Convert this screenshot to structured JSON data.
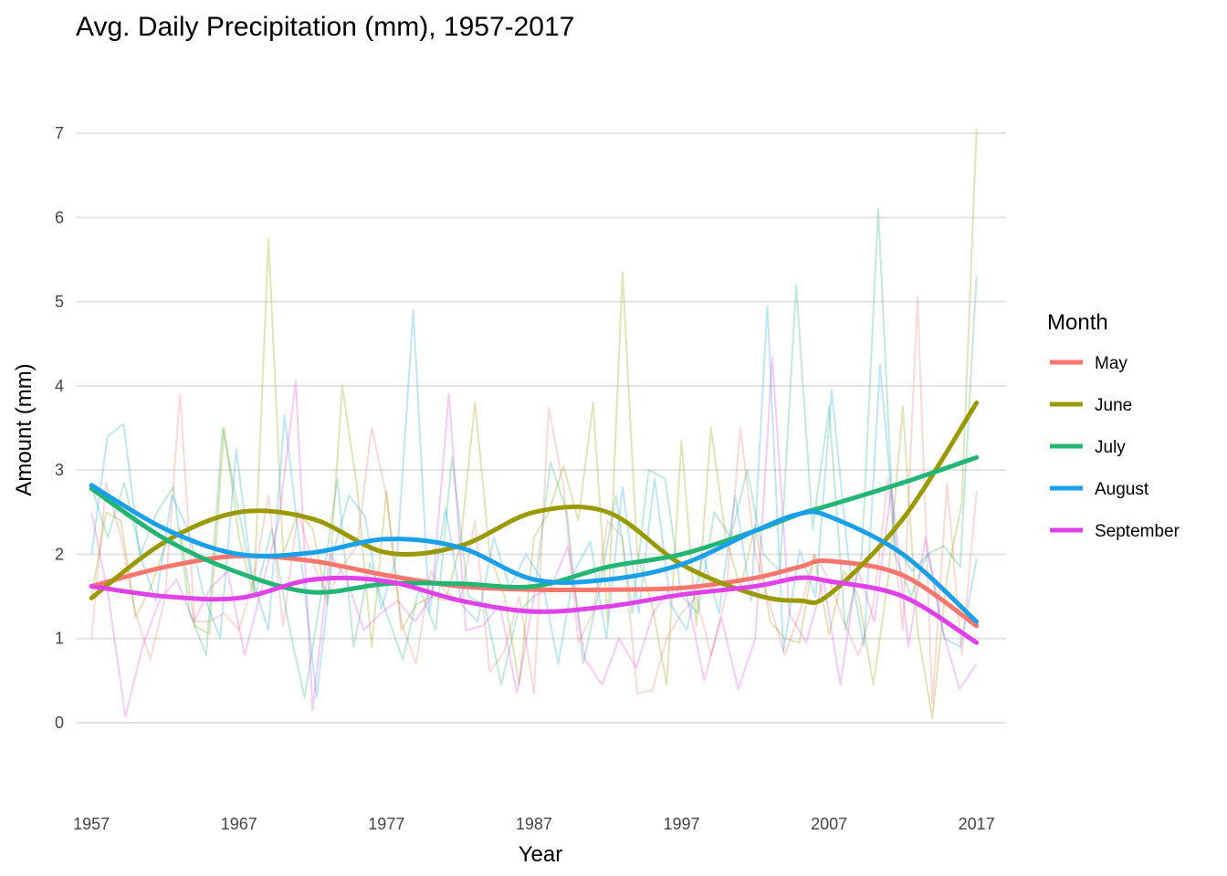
{
  "chart_data": {
    "type": "line",
    "title": "Avg. Daily Precipitation (mm), 1957-2017",
    "xlabel": "Year",
    "ylabel": "Amount (mm)",
    "xlim": [
      1956,
      2019
    ],
    "ylim": [
      -0.9,
      7.5
    ],
    "x_ticks": [
      1957,
      1967,
      1977,
      1987,
      1997,
      2007,
      2017
    ],
    "y_ticks": [
      0,
      1,
      2,
      3,
      4,
      5,
      6,
      7
    ],
    "grid": true,
    "legend": {
      "title": "Month",
      "placement": "right"
    },
    "smooth_x": [
      1957,
      1962,
      1967,
      1972,
      1977,
      1982,
      1987,
      1992,
      1997,
      2002,
      2005,
      2007,
      2012,
      2017
    ],
    "series": [
      {
        "name": "May",
        "color": "#F8766D",
        "raw": [
          1.0,
          2.85,
          2.2,
          1.3,
          0.75,
          1.5,
          3.9,
          1.2,
          1.2,
          1.3,
          1.1,
          1.7,
          2.7,
          1.15,
          2.5,
          1.9,
          1.5,
          1.85,
          2.1,
          3.5,
          2.7,
          1.2,
          0.7,
          1.8,
          1.55,
          1.45,
          2.4,
          0.6,
          0.85,
          1.5,
          0.35,
          3.75,
          2.8,
          0.95,
          1.3,
          2.4,
          2.2,
          0.35,
          0.38,
          1.0,
          1.3,
          1.5,
          0.8,
          1.5,
          3.5,
          2.0,
          1.4,
          0.8,
          1.3,
          2.0,
          1.7,
          1.2,
          0.8,
          1.4,
          2.9,
          1.1,
          5.05,
          0.22,
          2.85,
          0.8,
          2.75
        ],
        "smooth": [
          1.62,
          1.85,
          1.98,
          1.92,
          1.75,
          1.62,
          1.58,
          1.58,
          1.6,
          1.72,
          1.85,
          1.92,
          1.75,
          1.15
        ]
      },
      {
        "name": "June",
        "color": "#9A9A00",
        "raw": [
          1.5,
          2.5,
          2.4,
          1.25,
          1.6,
          2.1,
          2.3,
          1.15,
          1.05,
          3.5,
          2.2,
          1.5,
          5.75,
          2.0,
          2.5,
          2.3,
          1.4,
          4.0,
          2.8,
          0.9,
          2.75,
          1.1,
          1.4,
          1.5,
          1.45,
          2.1,
          3.8,
          2.0,
          1.5,
          0.45,
          2.2,
          2.5,
          3.05,
          2.4,
          3.8,
          1.2,
          5.35,
          2.0,
          1.4,
          0.45,
          3.35,
          1.15,
          3.5,
          2.2,
          1.6,
          2.35,
          1.2,
          1.0,
          0.95,
          2.0,
          1.05,
          1.8,
          1.5,
          0.45,
          1.7,
          3.75,
          1.1,
          0.05,
          1.75,
          2.6,
          7.05
        ],
        "smooth": [
          1.48,
          2.15,
          2.5,
          2.42,
          2.02,
          2.1,
          2.5,
          2.5,
          1.88,
          1.52,
          1.45,
          1.52,
          2.42,
          3.8
        ]
      },
      {
        "name": "July",
        "color": "#22B573",
        "raw": [
          2.8,
          2.2,
          2.85,
          2.0,
          2.5,
          2.8,
          1.3,
          0.8,
          3.5,
          2.5,
          1.5,
          2.3,
          1.2,
          0.3,
          1.5,
          2.9,
          0.9,
          1.9,
          1.3,
          0.75,
          1.6,
          1.1,
          3.15,
          1.5,
          1.4,
          0.45,
          1.3,
          1.5,
          3.1,
          2.5,
          0.7,
          1.6,
          2.7,
          1.3,
          3.0,
          2.9,
          1.5,
          1.3,
          2.5,
          2.2,
          3.0,
          2.0,
          1.8,
          5.2,
          2.3,
          3.75,
          1.1,
          2.0,
          6.1,
          2.0,
          1.5,
          2.0,
          2.1,
          1.85,
          5.3
        ],
        "smooth": [
          2.78,
          2.18,
          1.78,
          1.55,
          1.65,
          1.65,
          1.62,
          1.85,
          2.0,
          2.28,
          2.48,
          2.58,
          2.85,
          3.15
        ]
      },
      {
        "name": "August",
        "color": "#1AA0E8",
        "raw": [
          2.0,
          3.4,
          3.55,
          2.0,
          1.45,
          2.7,
          2.3,
          1.5,
          1.0,
          3.25,
          1.7,
          1.1,
          3.65,
          2.0,
          0.3,
          2.0,
          2.7,
          2.45,
          1.35,
          2.0,
          4.9,
          1.3,
          2.55,
          1.4,
          1.2,
          2.2,
          1.6,
          2.0,
          1.7,
          0.7,
          1.8,
          2.15,
          1.0,
          2.8,
          1.3,
          2.9,
          1.4,
          1.1,
          2.0,
          1.3,
          2.7,
          1.45,
          4.95,
          0.85,
          2.05,
          1.5,
          3.95,
          2.0,
          0.9,
          4.25,
          2.1,
          1.8,
          2.0,
          1.0,
          0.9,
          1.95
        ],
        "smooth": [
          2.82,
          2.3,
          2.0,
          2.02,
          2.18,
          2.08,
          1.7,
          1.7,
          1.88,
          2.28,
          2.48,
          2.45,
          2.0,
          1.2
        ]
      },
      {
        "name": "September",
        "color": "#E041E8",
        "raw": [
          2.5,
          1.5,
          0.07,
          0.9,
          1.45,
          1.7,
          1.2,
          1.6,
          1.8,
          0.8,
          1.6,
          2.4,
          4.05,
          0.15,
          2.0,
          1.7,
          1.1,
          1.3,
          1.45,
          1.2,
          1.5,
          3.9,
          1.1,
          1.15,
          1.4,
          0.35,
          1.5,
          1.6,
          2.1,
          0.75,
          0.45,
          1.0,
          0.65,
          1.3,
          1.6,
          1.5,
          0.5,
          1.25,
          0.4,
          1.0,
          4.35,
          1.3,
          0.95,
          1.7,
          0.45,
          1.85,
          1.2,
          2.8,
          0.9,
          2.2,
          1.1,
          0.4,
          0.7
        ],
        "smooth": [
          1.62,
          1.5,
          1.48,
          1.7,
          1.68,
          1.45,
          1.32,
          1.38,
          1.52,
          1.62,
          1.72,
          1.68,
          1.5,
          0.95
        ]
      }
    ]
  }
}
